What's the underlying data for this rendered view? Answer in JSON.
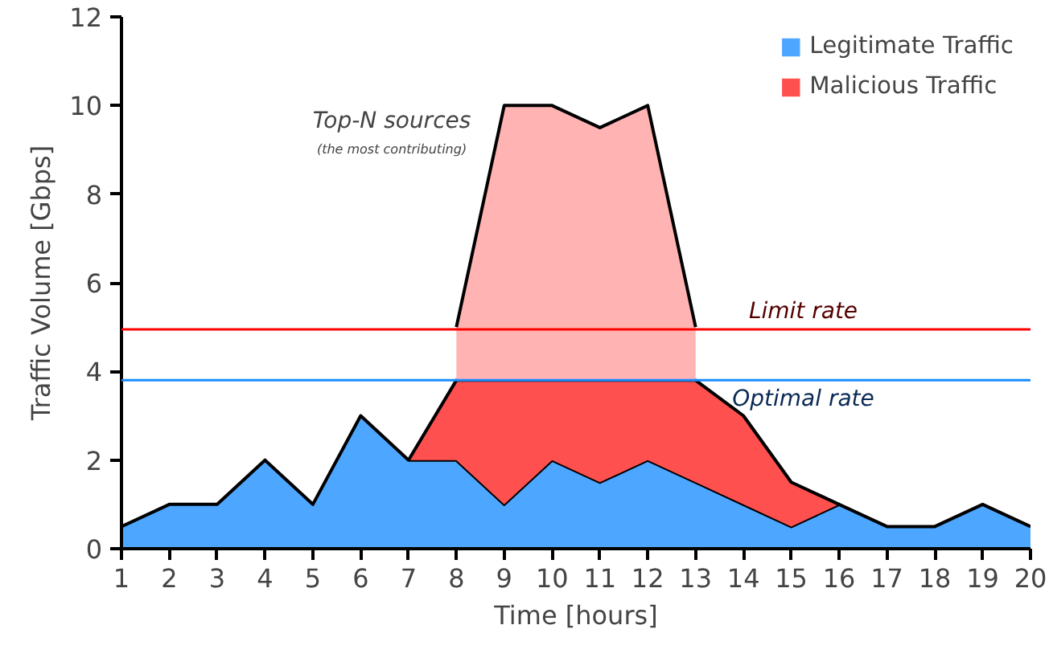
{
  "chart_data": {
    "type": "area",
    "stacked": true,
    "xlabel": "Time [hours]",
    "ylabel": "Traffic Volume [Gbps]",
    "x": [
      1,
      2,
      3,
      4,
      5,
      6,
      7,
      8,
      9,
      10,
      11,
      12,
      13,
      14,
      15,
      16,
      17,
      18,
      19,
      20
    ],
    "xlim": [
      1,
      20
    ],
    "xticks": [
      1,
      2,
      3,
      4,
      5,
      6,
      7,
      8,
      9,
      10,
      11,
      12,
      13,
      14,
      15,
      16,
      17,
      18,
      19,
      20
    ],
    "ylim": [
      0,
      12
    ],
    "yticks": [
      0,
      2,
      4,
      6,
      8,
      10,
      12
    ],
    "series": [
      {
        "name": "Legitimate Traffic",
        "color": "#4da6ff",
        "values": [
          0.5,
          1,
          1,
          2,
          1,
          3,
          2,
          2,
          1,
          2,
          1.5,
          2,
          1.5,
          1,
          0.5,
          1,
          0.5,
          0.5,
          1,
          0.5
        ]
      },
      {
        "name": "Malicious Traffic",
        "color": "#ff5050",
        "values": [
          null,
          null,
          null,
          null,
          null,
          null,
          0,
          1.8,
          2.8,
          1.8,
          2.3,
          1.8,
          2.3,
          2,
          1,
          0,
          null,
          null,
          null,
          null
        ]
      },
      {
        "color": "#ffb3b3",
        "values": [
          null,
          null,
          null,
          null,
          null,
          null,
          null,
          1.2,
          6.2,
          6.2,
          5.7,
          6.2,
          1.2,
          null,
          null,
          null,
          null,
          null,
          null,
          null
        ]
      }
    ],
    "ref_lines": [
      {
        "axis": "y",
        "value": 4.95,
        "label": "Limit rate",
        "color": "#ff0000"
      },
      {
        "axis": "y",
        "value": 3.8,
        "label": "Optimal rate",
        "color": "#1a8cff"
      }
    ],
    "annotations": [
      "Top-N sources",
      "(the most contributing)"
    ],
    "legend": "top right"
  }
}
